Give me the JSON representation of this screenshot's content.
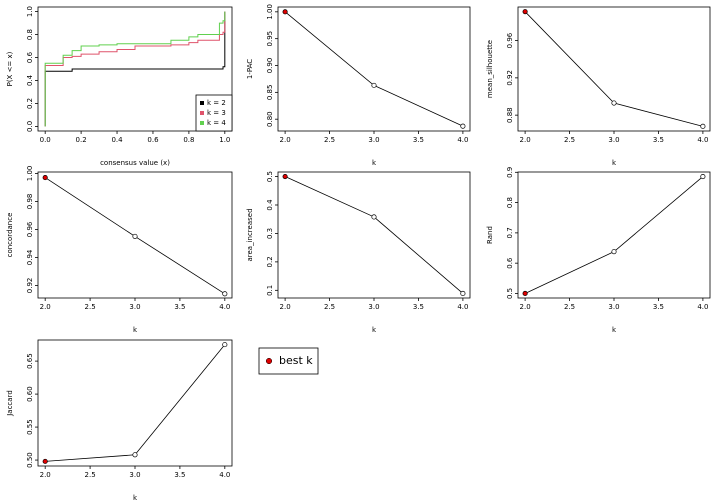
{
  "chart_data": [
    {
      "type": "step",
      "xlabel": "consensus value (x)",
      "ylabel": "P(X <= x)",
      "x": [
        0,
        0,
        0.1,
        0.15,
        0.2,
        0.3,
        0.4,
        0.5,
        0.7,
        0.8,
        0.85,
        0.97,
        0.99,
        1.0
      ],
      "series": [
        {
          "name": "k = 2",
          "color": "#000000",
          "values": [
            0,
            0.48,
            0.48,
            0.5,
            0.5,
            0.5,
            0.5,
            0.5,
            0.5,
            0.5,
            0.5,
            0.5,
            0.52,
            1.0
          ]
        },
        {
          "name": "k = 3",
          "color": "#DF536B",
          "values": [
            0,
            0.53,
            0.6,
            0.61,
            0.63,
            0.65,
            0.67,
            0.7,
            0.71,
            0.73,
            0.75,
            0.8,
            0.82,
            1.0
          ]
        },
        {
          "name": "k = 4",
          "color": "#61D04F",
          "values": [
            0,
            0.55,
            0.62,
            0.66,
            0.7,
            0.71,
            0.72,
            0.72,
            0.75,
            0.78,
            0.8,
            0.9,
            0.92,
            1.0
          ]
        }
      ],
      "xlim": [
        -0.04,
        1.04
      ],
      "ylim": [
        -0.04,
        1.04
      ],
      "xticks": [
        {
          "value": 0,
          "label": "0.0"
        },
        0.2,
        0.4,
        0.6,
        0.8,
        {
          "value": 1,
          "label": "1.0"
        }
      ],
      "yticks": [
        {
          "value": 0,
          "label": "0.0"
        },
        0.2,
        0.4,
        0.6,
        0.8,
        {
          "value": 1,
          "label": "1.0"
        }
      ],
      "legend": "bottom-right"
    },
    {
      "type": "line",
      "xlabel": "k",
      "ylabel": "1-PAC",
      "x": [
        2,
        3,
        4
      ],
      "values": [
        1.0,
        0.863,
        0.787
      ],
      "colors": [
        "#DF0000",
        "#FFFFFF",
        "#FFFFFF"
      ],
      "xlim": [
        1.92,
        4.08
      ],
      "ylim": [
        0.778,
        1.009
      ],
      "xticks": [
        {
          "value": 2,
          "label": "2.0"
        },
        2.5,
        {
          "value": 3,
          "label": "3.0"
        },
        3.5,
        {
          "value": 4,
          "label": "4.0"
        }
      ],
      "yticks": [
        {
          "value": 0.8,
          "label": "0.80"
        },
        0.85,
        {
          "value": 0.9,
          "label": "0.90"
        },
        0.95,
        {
          "value": 1,
          "label": "1.00"
        }
      ]
    },
    {
      "type": "line",
      "xlabel": "k",
      "ylabel": "mean_silhouette",
      "x": [
        2,
        3,
        4
      ],
      "values": [
        0.991,
        0.893,
        0.868
      ],
      "colors": [
        "#DF0000",
        "#FFFFFF",
        "#FFFFFF"
      ],
      "xlim": [
        1.92,
        4.08
      ],
      "ylim": [
        0.863,
        0.996
      ],
      "xticks": [
        {
          "value": 2,
          "label": "2.0"
        },
        2.5,
        {
          "value": 3,
          "label": "3.0"
        },
        3.5,
        {
          "value": 4,
          "label": "4.0"
        }
      ],
      "yticks": [
        0.88,
        0.92,
        0.96
      ]
    },
    {
      "type": "line",
      "xlabel": "k",
      "ylabel": "concordance",
      "x": [
        2,
        3,
        4
      ],
      "values": [
        0.997,
        0.955,
        0.914
      ],
      "colors": [
        "#DF0000",
        "#FFFFFF",
        "#FFFFFF"
      ],
      "xlim": [
        1.92,
        4.08
      ],
      "ylim": [
        0.911,
        1.001
      ],
      "xticks": [
        {
          "value": 2,
          "label": "2.0"
        },
        2.5,
        {
          "value": 3,
          "label": "3.0"
        },
        3.5,
        {
          "value": 4,
          "label": "4.0"
        }
      ],
      "yticks": [
        0.92,
        0.94,
        0.96,
        0.98,
        {
          "value": 1,
          "label": "1.00"
        }
      ]
    },
    {
      "type": "line",
      "xlabel": "k",
      "ylabel": "area_increased",
      "x": [
        2,
        3,
        4
      ],
      "values": [
        0.5,
        0.358,
        0.089
      ],
      "colors": [
        "#DF0000",
        "#FFFFFF",
        "#FFFFFF"
      ],
      "xlim": [
        1.92,
        4.08
      ],
      "ylim": [
        0.073,
        0.516
      ],
      "xticks": [
        {
          "value": 2,
          "label": "2.0"
        },
        2.5,
        {
          "value": 3,
          "label": "3.0"
        },
        3.5,
        {
          "value": 4,
          "label": "4.0"
        }
      ],
      "yticks": [
        0.1,
        0.2,
        0.3,
        0.4,
        0.5
      ]
    },
    {
      "type": "line",
      "xlabel": "k",
      "ylabel": "Rand",
      "x": [
        2,
        3,
        4
      ],
      "values": [
        0.5,
        0.638,
        0.886
      ],
      "colors": [
        "#DF0000",
        "#FFFFFF",
        "#FFFFFF"
      ],
      "xlim": [
        1.92,
        4.08
      ],
      "ylim": [
        0.485,
        0.901
      ],
      "xticks": [
        {
          "value": 2,
          "label": "2.0"
        },
        2.5,
        {
          "value": 3,
          "label": "3.0"
        },
        3.5,
        {
          "value": 4,
          "label": "4.0"
        }
      ],
      "yticks": [
        0.5,
        0.6,
        0.7,
        0.8,
        0.9
      ]
    },
    {
      "type": "line",
      "xlabel": "k",
      "ylabel": "Jaccard",
      "x": [
        2,
        3,
        4
      ],
      "values": [
        0.498,
        0.508,
        0.675
      ],
      "colors": [
        "#DF0000",
        "#FFFFFF",
        "#FFFFFF"
      ],
      "xlim": [
        1.92,
        4.08
      ],
      "ylim": [
        0.491,
        0.682
      ],
      "xticks": [
        {
          "value": 2,
          "label": "2.0"
        },
        2.5,
        {
          "value": 3,
          "label": "3.0"
        },
        3.5,
        {
          "value": 4,
          "label": "4.0"
        }
      ],
      "yticks": [
        {
          "value": 0.5,
          "label": "0.50"
        },
        0.55,
        {
          "value": 0.6,
          "label": "0.60"
        },
        0.65
      ]
    },
    {
      "type": "legend",
      "label": "best k",
      "color": "#DF0000"
    }
  ]
}
